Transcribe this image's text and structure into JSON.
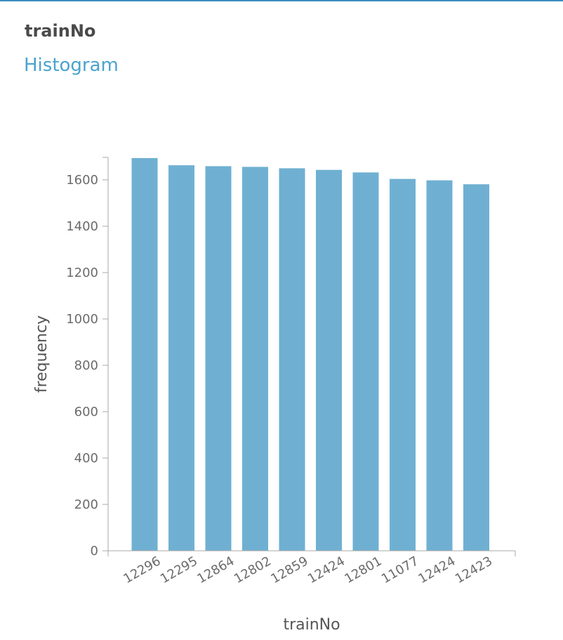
{
  "header": {
    "title": "trainNo",
    "subtitle": "Histogram"
  },
  "colors": {
    "accent_rule": "#3b8ec2",
    "subtitle": "#4aa3d0",
    "bar": "#6fb0d2",
    "axis": "#a8a8a8"
  },
  "chart_data": {
    "type": "bar",
    "title": "",
    "xlabel": "trainNo",
    "ylabel": "frequency",
    "categories": [
      "12296",
      "12295",
      "12864",
      "12802",
      "12859",
      "12424",
      "12801",
      "11077",
      "12424",
      "12423"
    ],
    "values": [
      1694,
      1663,
      1659,
      1656,
      1650,
      1643,
      1632,
      1604,
      1598,
      1581
    ],
    "ylim": [
      0,
      1700
    ],
    "yticks": [
      0,
      200,
      400,
      600,
      800,
      1000,
      1200,
      1400,
      1600
    ],
    "grid": false,
    "legend": "none"
  }
}
